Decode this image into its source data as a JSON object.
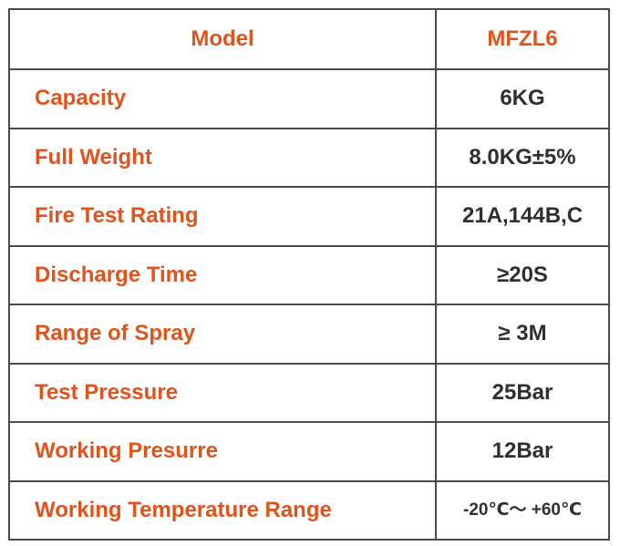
{
  "table": {
    "header": {
      "label": "Model",
      "value": "MFZL6"
    },
    "rows": [
      {
        "label": "Capacity",
        "value": "6KG"
      },
      {
        "label": "Full Weight",
        "value": "8.0KG±5%"
      },
      {
        "label": "Fire Test Rating",
        "value": "21A,144B,C"
      },
      {
        "label": "Discharge Time",
        "value": "≥20S"
      },
      {
        "label": "Range of Spray",
        "value": "≥ 3M"
      },
      {
        "label": "Test Pressure",
        "value": "25Bar"
      },
      {
        "label": "Working Presurre",
        "value": "12Bar"
      },
      {
        "label": "Working Temperature Range",
        "value": "-20℃～ +60℃"
      }
    ]
  },
  "colors": {
    "label": "#e0531c",
    "value": "#2f2f2f",
    "border": "#4a4a4a"
  }
}
